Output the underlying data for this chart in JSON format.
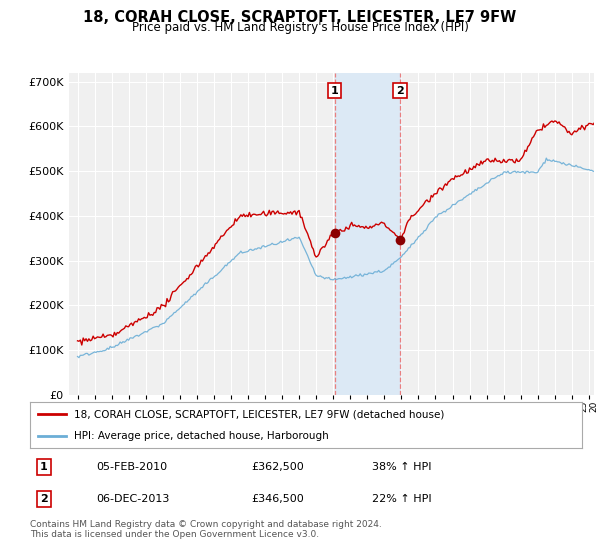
{
  "title": "18, CORAH CLOSE, SCRAPTOFT, LEICESTER, LE7 9FW",
  "subtitle": "Price paid vs. HM Land Registry's House Price Index (HPI)",
  "legend_line1": "18, CORAH CLOSE, SCRAPTOFT, LEICESTER, LE7 9FW (detached house)",
  "legend_line2": "HPI: Average price, detached house, Harborough",
  "annotation1_label": "1",
  "annotation1_date": "05-FEB-2010",
  "annotation1_price": "£362,500",
  "annotation1_hpi": "38% ↑ HPI",
  "annotation2_label": "2",
  "annotation2_date": "06-DEC-2013",
  "annotation2_price": "£346,500",
  "annotation2_hpi": "22% ↑ HPI",
  "footer": "Contains HM Land Registry data © Crown copyright and database right 2024.\nThis data is licensed under the Open Government Licence v3.0.",
  "sale1_year": 2010.09,
  "sale1_value": 362500,
  "sale2_year": 2013.92,
  "sale2_value": 346500,
  "hpi_color": "#6baed6",
  "price_color": "#cc0000",
  "background_color": "#ffffff",
  "plot_bg_color": "#f0f0f0",
  "highlight_color": "#dce9f5",
  "ylim_min": 0,
  "ylim_max": 720000,
  "noise_seed": 42
}
